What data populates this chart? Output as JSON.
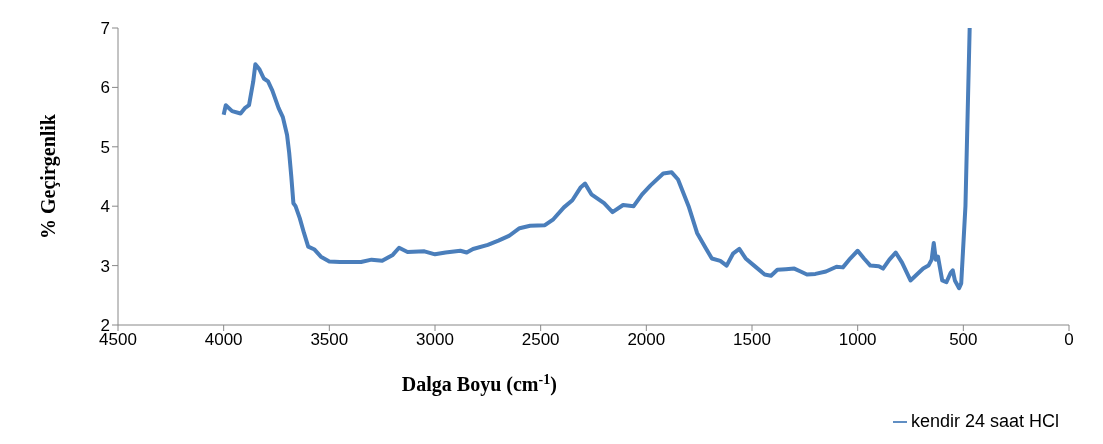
{
  "chart_data": {
    "type": "line",
    "xlabel": "Dalga Boyu (cm$^{-1}$)",
    "ylabel": "% Geçirgenlik",
    "xlim": [
      4500,
      0
    ],
    "xticks": [
      4500,
      4000,
      3500,
      3000,
      2500,
      2000,
      1500,
      1000,
      500,
      0
    ],
    "ylim": [
      2,
      7
    ],
    "yticks": [
      2,
      3,
      4,
      5,
      6,
      7
    ],
    "grid": false,
    "legend": "bottom right",
    "marker": "none",
    "line_style": "solid",
    "x": [
      4000,
      3990,
      3960,
      3920,
      3900,
      3880,
      3860,
      3850,
      3830,
      3810,
      3790,
      3770,
      3740,
      3720,
      3700,
      3690,
      3680,
      3670,
      3660,
      3640,
      3620,
      3600,
      3570,
      3540,
      3500,
      3450,
      3350,
      3300,
      3250,
      3200,
      3170,
      3130,
      3050,
      3000,
      2950,
      2880,
      2850,
      2820,
      2750,
      2700,
      2650,
      2600,
      2550,
      2480,
      2440,
      2390,
      2350,
      2310,
      2290,
      2260,
      2200,
      2160,
      2110,
      2060,
      2020,
      1980,
      1920,
      1880,
      1850,
      1800,
      1760,
      1720,
      1690,
      1650,
      1620,
      1590,
      1560,
      1530,
      1490,
      1440,
      1410,
      1380,
      1340,
      1300,
      1270,
      1240,
      1200,
      1150,
      1100,
      1070,
      1040,
      1000,
      970,
      940,
      900,
      880,
      850,
      820,
      790,
      750,
      720,
      690,
      665,
      650,
      640,
      630,
      620,
      600,
      580,
      560,
      550,
      540,
      520,
      510,
      490,
      470
    ],
    "series": [
      {
        "name": "kendir 24 saat HCl",
        "color": "#4a7ebb",
        "values": [
          5.54,
          5.7,
          5.6,
          5.56,
          5.65,
          5.7,
          6.1,
          6.39,
          6.3,
          6.15,
          6.1,
          5.95,
          5.65,
          5.5,
          5.2,
          4.9,
          4.5,
          4.05,
          4.0,
          3.8,
          3.55,
          3.32,
          3.27,
          3.15,
          3.07,
          3.06,
          3.06,
          3.1,
          3.08,
          3.18,
          3.3,
          3.23,
          3.24,
          3.19,
          3.22,
          3.25,
          3.22,
          3.28,
          3.35,
          3.42,
          3.5,
          3.63,
          3.67,
          3.68,
          3.78,
          3.98,
          4.1,
          4.32,
          4.38,
          4.2,
          4.05,
          3.9,
          4.02,
          4.0,
          4.2,
          4.35,
          4.55,
          4.57,
          4.45,
          4.0,
          3.55,
          3.3,
          3.12,
          3.08,
          3.0,
          3.2,
          3.28,
          3.12,
          3.0,
          2.85,
          2.83,
          2.93,
          2.94,
          2.95,
          2.9,
          2.85,
          2.86,
          2.9,
          2.98,
          2.97,
          3.1,
          3.25,
          3.12,
          3.0,
          2.99,
          2.95,
          3.1,
          3.22,
          3.05,
          2.75,
          2.85,
          2.95,
          3.0,
          3.1,
          3.38,
          3.1,
          3.15,
          2.75,
          2.72,
          2.88,
          2.92,
          2.75,
          2.62,
          2.7,
          4.0,
          7.0
        ]
      }
    ]
  }
}
